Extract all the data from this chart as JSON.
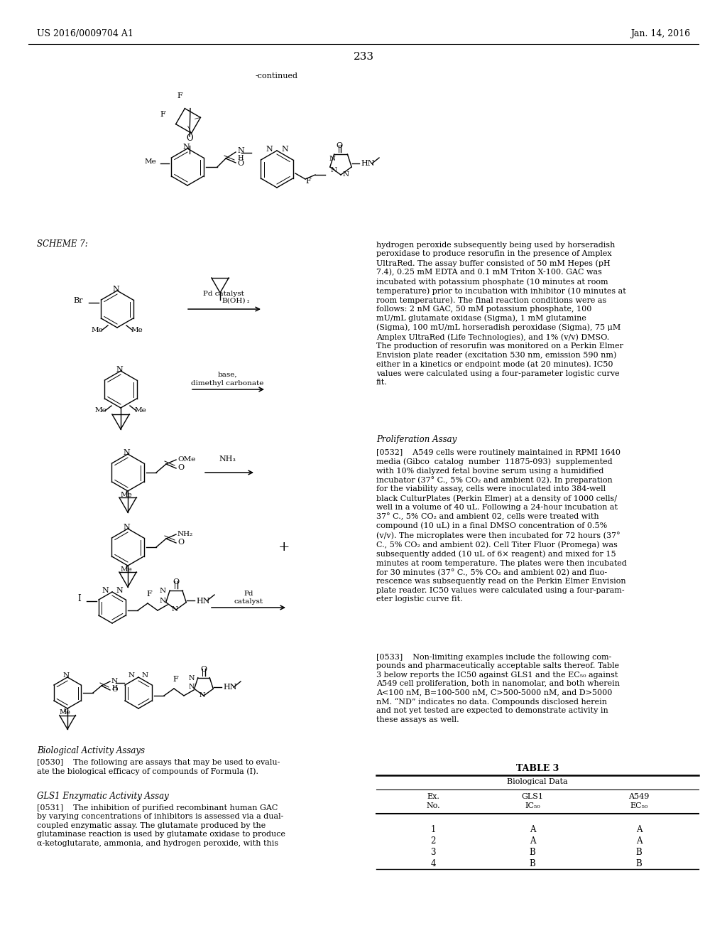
{
  "bg_color": "#ffffff",
  "header_left": "US 2016/0009704 A1",
  "header_right": "Jan. 14, 2016",
  "page_number": "233",
  "continued_label": "-continued",
  "scheme_label": "SCHEME 7:",
  "section_heading1": "Biological Activity Assays",
  "subsection1": "GLS1 Enzymatic Activity Assay",
  "para0530": "[0530]    The following are assays that may be used to evalu-\nate the biological efficacy of compounds of Formula (I).",
  "para0531": "[0531]    The inhibition of purified recombinant human GAC\nby varying concentrations of inhibitors is assessed via a dual-\ncoupled enzymatic assay. The glutamate produced by the\nglutaminase reaction is used by glutamate oxidase to produce\nα-ketoglutarate, ammonia, and hydrogen peroxide, with this",
  "right_top": "hydrogen peroxide subsequently being used by horseradish\nperoxidase to produce resorufin in the presence of Amplex\nUltraRed. The assay buffer consisted of 50 mM Hepes (pH\n7.4), 0.25 mM EDTA and 0.1 mM Triton X-100. GAC was\nincubated with potassium phosphate (10 minutes at room\ntemperature) prior to incubation with inhibitor (10 minutes at\nroom temperature). The final reaction conditions were as\nfollows: 2 nM GAC, 50 mM potassium phosphate, 100\nmU/mL glutamate oxidase (Sigma), 1 mM glutamine\n(Sigma), 100 mU/mL horseradish peroxidase (Sigma), 75 μM\nAmplex UltraRed (Life Technologies), and 1% (v/v) DMSO.\nThe production of resorufin was monitored on a Perkin Elmer\nEnvision plate reader (excitation 530 nm, emission 590 nm)\neither in a kinetics or endpoint mode (at 20 minutes). IC50\nvalues were calculated using a four-parameter logistic curve\nfit.",
  "proliferation_heading": "Proliferation Assay",
  "para0532": "[0532]    A549 cells were routinely maintained in RPMI 1640\nmedia (Gibco  catalog  number  11875-093)  supplemented\nwith 10% dialyzed fetal bovine serum using a humidified\nincubator (37° C., 5% CO₂ and ambient 02). In preparation\nfor the viability assay, cells were inoculated into 384-well\nblack CulturPlates (Perkin Elmer) at a density of 1000 cells/\nwell in a volume of 40 uL. Following a 24-hour incubation at\n37° C., 5% CO₂ and ambient 02, cells were treated with\ncompound (10 uL) in a final DMSO concentration of 0.5%\n(v/v). The microplates were then incubated for 72 hours (37°\nC., 5% CO₂ and ambient 02). Cell Titer Fluor (Promega) was\nsubsequently added (10 uL of 6× reagent) and mixed for 15\nminutes at room temperature. The plates were then incubated\nfor 30 minutes (37° C., 5% CO₂ and ambient 02) and fluo-\nrescence was subsequently read on the Perkin Elmer Envision\nplate reader. IC50 values were calculated using a four-param-\neter logistic curve fit.",
  "para0533": "[0533]    Non-limiting examples include the following com-\npounds and pharmaceutically acceptable salts thereof. Table\n3 below reports the IC50 against GLS1 and the EC₅₀ against\nA549 cell proliferation, both in nanomolar, and both wherein\nA<100 nM, B=100-500 nM, C>500-5000 nM, and D>5000\nnM. “ND” indicates no data. Compounds disclosed herein\nand not yet tested are expected to demonstrate activity in\nthese assays as well.",
  "table_title": "TABLE 3",
  "table_subtitle": "Biological Data",
  "table_col1a": "Ex.",
  "table_col1b": "No.",
  "table_col2a": "GLS1",
  "table_col2b": "IC₅₀",
  "table_col3a": "A549",
  "table_col3b": "EC₅₀",
  "table_data": [
    [
      "1",
      "A",
      "A"
    ],
    [
      "2",
      "A",
      "A"
    ],
    [
      "3",
      "B",
      "B"
    ],
    [
      "4",
      "B",
      "B"
    ]
  ]
}
